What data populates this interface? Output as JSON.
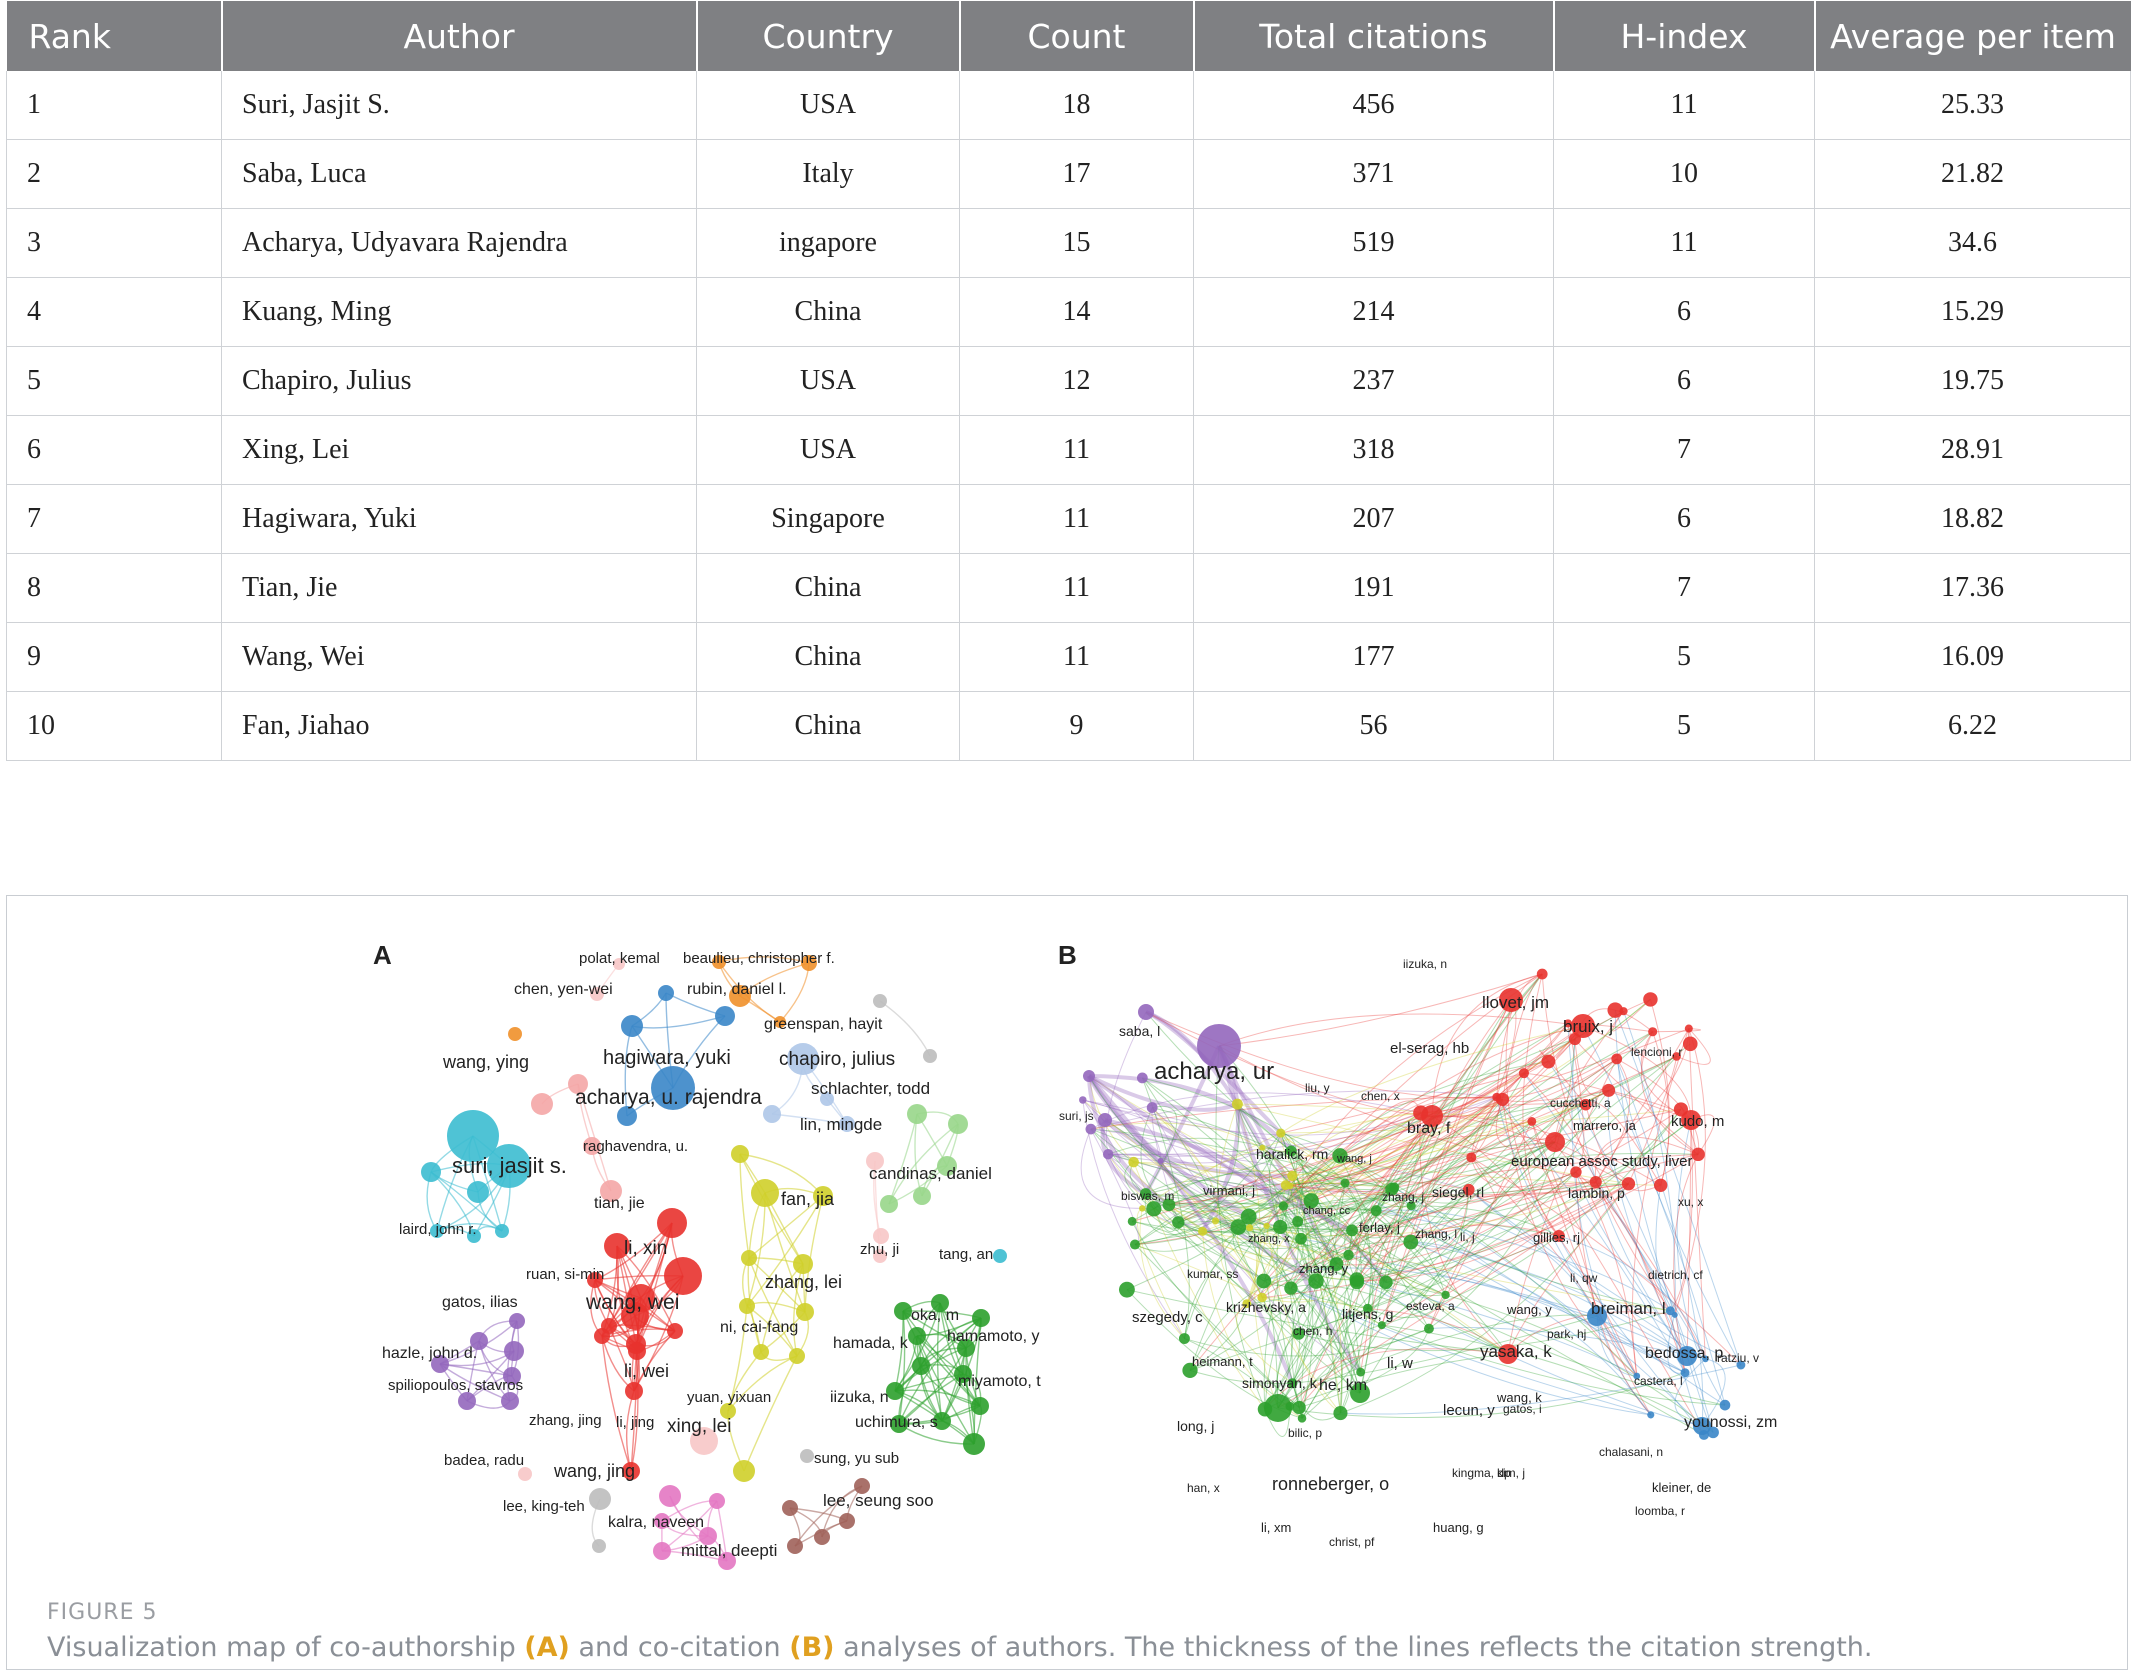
{
  "table": {
    "headers": [
      "Rank",
      "Author",
      "Country",
      "Count",
      "Total citations",
      "H-index",
      "Average per item"
    ],
    "rows": [
      [
        "1",
        "Suri, Jasjit S.",
        "USA",
        "18",
        "456",
        "11",
        "25.33"
      ],
      [
        "2",
        "Saba, Luca",
        "Italy",
        "17",
        "371",
        "10",
        "21.82"
      ],
      [
        "3",
        "Acharya, Udyavara Rajendra",
        "ingapore",
        "15",
        "519",
        "11",
        "34.6"
      ],
      [
        "4",
        "Kuang, Ming",
        "China",
        "14",
        "214",
        "6",
        "15.29"
      ],
      [
        "5",
        "Chapiro, Julius",
        "USA",
        "12",
        "237",
        "6",
        "19.75"
      ],
      [
        "6",
        "Xing, Lei",
        "USA",
        "11",
        "318",
        "7",
        "28.91"
      ],
      [
        "7",
        "Hagiwara, Yuki",
        "Singapore",
        "11",
        "207",
        "6",
        "18.82"
      ],
      [
        "8",
        "Tian, Jie",
        "China",
        "11",
        "191",
        "7",
        "17.36"
      ],
      [
        "9",
        "Wang, Wei",
        "China",
        "11",
        "177",
        "5",
        "16.09"
      ],
      [
        "10",
        "Fan, Jiahao",
        "China",
        "9",
        "56",
        "5",
        "6.22"
      ]
    ]
  },
  "figure": {
    "label": "FIGURE 5",
    "caption_parts": {
      "p1": "Visualization map of co-authorship ",
      "a": "(A)",
      "p2": " and co-citation ",
      "b": "(B)",
      "p3": " analyses of authors. The thickness of the lines reflects the citation strength."
    },
    "panel_a": {
      "letter": "A",
      "labels": [
        "polat, kemal",
        "beaulieu, christopher f.",
        "chen, yen-wei",
        "rubin, daniel l.",
        "greenspan, hayit",
        "wang, ying",
        "hagiwara, yuki",
        "chapiro, julius",
        "schlachter, todd",
        "acharya, u. rajendra",
        "lin, mingde",
        "raghavendra, u.",
        "suri, jasjit s.",
        "candinas, daniel",
        "tian, jie",
        "fan, jia",
        "laird, john r.",
        "li, xin",
        "zhu, ji",
        "tang, an",
        "ruan, si-min",
        "zhang, lei",
        "gatos, ilias",
        "wang, wei",
        "oka, m",
        "ni, cai-fang",
        "hamamoto, y",
        "hamada, k",
        "hazle, john d.",
        "li, wei",
        "miyamoto, t",
        "spiliopoulos, stavros",
        "yuan, yixuan",
        "iizuka, n",
        "zhang, jing",
        "li, jing",
        "xing, lei",
        "uchimura, s",
        "badea, radu",
        "sung, yu sub",
        "wang, jing",
        "lee, seung soo",
        "lee, king-teh",
        "kalra, naveen",
        "mittal, deepti"
      ]
    },
    "panel_b": {
      "letter": "B",
      "labels": [
        "iizuka, n",
        "llovet, jm",
        "bruix, j",
        "saba, l",
        "el-serag, hb",
        "lencioni, r",
        "acharya, ur",
        "liu, y",
        "chen, x",
        "suri, js",
        "cucchetti, a",
        "marrero, ja",
        "kudo, m",
        "bray, f",
        "haralick, rm",
        "wang, j",
        "european assoc study, liver",
        "biswas, m",
        "virmani, j",
        "zhang, j",
        "siegel, rl",
        "lambin, p",
        "xu, x",
        "chang, cc",
        "zhang, x",
        "ferlay, j",
        "zhang, l",
        "li, j",
        "gillies, rj",
        "kumar, ss",
        "zhang, y",
        "li, qw",
        "dietrich, cf",
        "szegedy, c",
        "krizhevsky, a",
        "litjens, g",
        "esteva, a",
        "wang, y",
        "breiman, l",
        "chen, h",
        "park, hj",
        "heimann, t",
        "li, w",
        "yasaka, k",
        "bedossa, p",
        "ratziu, v",
        "simonyan, k",
        "he, km",
        "castera, l",
        "wang, k",
        "lecun, y",
        "gatos, i",
        "younossi, zm",
        "long, j",
        "bilic, p",
        "chalasani, n",
        "kingma, dp",
        "kim, j",
        "han, x",
        "ronneberger, o",
        "kleiner, de",
        "loomba, r",
        "li, xm",
        "huang, g",
        "christ, pf"
      ]
    },
    "colors": {
      "cyan": "#3cbcd0",
      "blue": "#3a86c8",
      "lightblue": "#aec7e8",
      "red": "#e8322e",
      "pink": "#f4a6a6",
      "yellow": "#cfcf2a",
      "green": "#2ca02c",
      "lightgreen": "#98d68a",
      "purple": "#9467bd",
      "orange": "#f0902a",
      "brown": "#a0625a",
      "magenta": "#e377c2",
      "gray": "#bdbdbd",
      "lightpink": "#f7c6c6"
    }
  }
}
